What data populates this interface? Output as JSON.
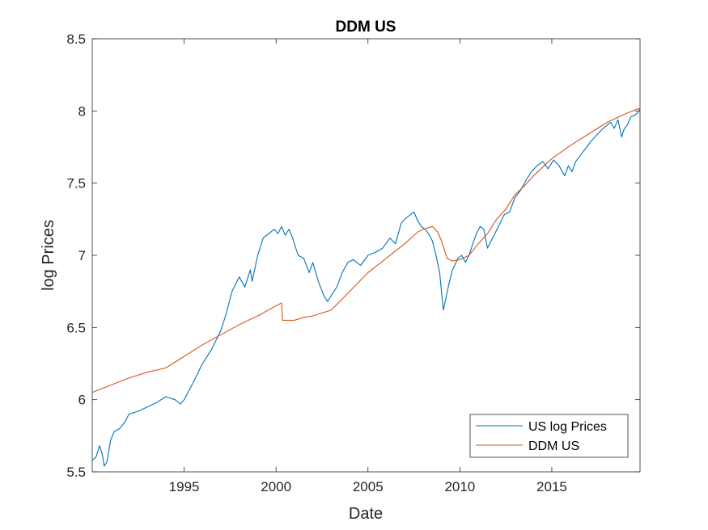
{
  "chart_data": {
    "type": "line",
    "title": "DDM US",
    "xlabel": "Date",
    "ylabel": "log Prices",
    "xlim": [
      1990.0,
      2019.8
    ],
    "ylim": [
      5.5,
      8.5
    ],
    "xticks": [
      1995,
      2000,
      2005,
      2010,
      2015
    ],
    "yticks": [
      5.5,
      6,
      6.5,
      7,
      7.5,
      8,
      8.5
    ],
    "ytick_labels": [
      "5.5",
      "6",
      "6.5",
      "7",
      "7.5",
      "8",
      "8.5"
    ],
    "grid": false,
    "legend_location": "bottom-right",
    "series": [
      {
        "name": "US log Prices",
        "color": "#0072BD",
        "x": [
          1990.0,
          1990.2,
          1990.4,
          1990.55,
          1990.65,
          1990.8,
          1991.0,
          1991.2,
          1991.5,
          1991.8,
          1992.0,
          1992.5,
          1993.0,
          1993.5,
          1994.0,
          1994.5,
          1994.8,
          1995.0,
          1995.5,
          1996.0,
          1996.5,
          1997.0,
          1997.3,
          1997.6,
          1997.8,
          1998.0,
          1998.3,
          1998.6,
          1998.7,
          1999.0,
          1999.3,
          1999.6,
          1999.9,
          2000.1,
          2000.3,
          2000.5,
          2000.7,
          2000.9,
          2001.2,
          2001.5,
          2001.8,
          2002.0,
          2002.3,
          2002.6,
          2002.8,
          2003.0,
          2003.3,
          2003.6,
          2003.9,
          2004.2,
          2004.6,
          2005.0,
          2005.4,
          2005.8,
          2006.2,
          2006.5,
          2006.8,
          2007.0,
          2007.3,
          2007.5,
          2007.7,
          2007.9,
          2008.1,
          2008.3,
          2008.5,
          2008.7,
          2008.9,
          2009.0,
          2009.1,
          2009.2,
          2009.4,
          2009.6,
          2009.9,
          2010.1,
          2010.3,
          2010.5,
          2010.7,
          2010.9,
          2011.1,
          2011.3,
          2011.5,
          2011.7,
          2011.9,
          2012.1,
          2012.4,
          2012.7,
          2013.0,
          2013.3,
          2013.6,
          2013.9,
          2014.2,
          2014.5,
          2014.8,
          2015.1,
          2015.4,
          2015.7,
          2015.9,
          2016.1,
          2016.3,
          2016.6,
          2016.9,
          2017.2,
          2017.5,
          2017.8,
          2018.0,
          2018.2,
          2018.4,
          2018.6,
          2018.8,
          2018.95,
          2019.1,
          2019.3,
          2019.5,
          2019.7,
          2019.8
        ],
        "y": [
          5.58,
          5.6,
          5.68,
          5.62,
          5.54,
          5.57,
          5.72,
          5.78,
          5.8,
          5.85,
          5.9,
          5.92,
          5.95,
          5.98,
          6.02,
          6.0,
          5.97,
          6.0,
          6.12,
          6.25,
          6.35,
          6.48,
          6.6,
          6.75,
          6.8,
          6.85,
          6.78,
          6.9,
          6.82,
          7.0,
          7.12,
          7.15,
          7.18,
          7.15,
          7.2,
          7.14,
          7.18,
          7.12,
          7.0,
          6.98,
          6.88,
          6.95,
          6.82,
          6.72,
          6.68,
          6.72,
          6.78,
          6.88,
          6.95,
          6.97,
          6.93,
          7.0,
          7.02,
          7.05,
          7.12,
          7.08,
          7.22,
          7.25,
          7.28,
          7.3,
          7.24,
          7.2,
          7.18,
          7.15,
          7.1,
          7.0,
          6.88,
          6.75,
          6.62,
          6.68,
          6.8,
          6.9,
          6.98,
          7.0,
          6.95,
          7.0,
          7.08,
          7.15,
          7.2,
          7.18,
          7.05,
          7.1,
          7.15,
          7.2,
          7.28,
          7.3,
          7.4,
          7.45,
          7.52,
          7.58,
          7.62,
          7.65,
          7.6,
          7.66,
          7.62,
          7.55,
          7.62,
          7.58,
          7.65,
          7.7,
          7.75,
          7.8,
          7.84,
          7.88,
          7.9,
          7.92,
          7.88,
          7.94,
          7.82,
          7.88,
          7.9,
          7.96,
          7.97,
          7.99,
          8.02
        ]
      },
      {
        "name": "DDM US",
        "color": "#D95319",
        "x": [
          1990.0,
          1991.0,
          1992.0,
          1993.0,
          1994.0,
          1995.0,
          1996.0,
          1997.0,
          1998.0,
          1999.0,
          2000.0,
          2000.3,
          2000.35,
          2000.8,
          2001.0,
          2001.5,
          2002.0,
          2003.0,
          2004.0,
          2005.0,
          2006.0,
          2007.0,
          2007.7,
          2008.0,
          2008.5,
          2008.8,
          2009.0,
          2009.3,
          2009.6,
          2010.0,
          2010.5,
          2011.0,
          2011.5,
          2012.0,
          2012.5,
          2013.0,
          2013.5,
          2014.0,
          2015.0,
          2016.0,
          2017.0,
          2018.0,
          2019.0,
          2019.8
        ],
        "y": [
          6.05,
          6.1,
          6.15,
          6.19,
          6.22,
          6.3,
          6.38,
          6.45,
          6.52,
          6.58,
          6.65,
          6.67,
          6.55,
          6.55,
          6.55,
          6.57,
          6.58,
          6.62,
          6.75,
          6.88,
          6.98,
          7.08,
          7.16,
          7.18,
          7.2,
          7.16,
          7.1,
          6.98,
          6.96,
          6.97,
          7.0,
          7.08,
          7.15,
          7.25,
          7.32,
          7.42,
          7.48,
          7.55,
          7.67,
          7.76,
          7.84,
          7.92,
          7.98,
          8.02
        ]
      }
    ]
  }
}
